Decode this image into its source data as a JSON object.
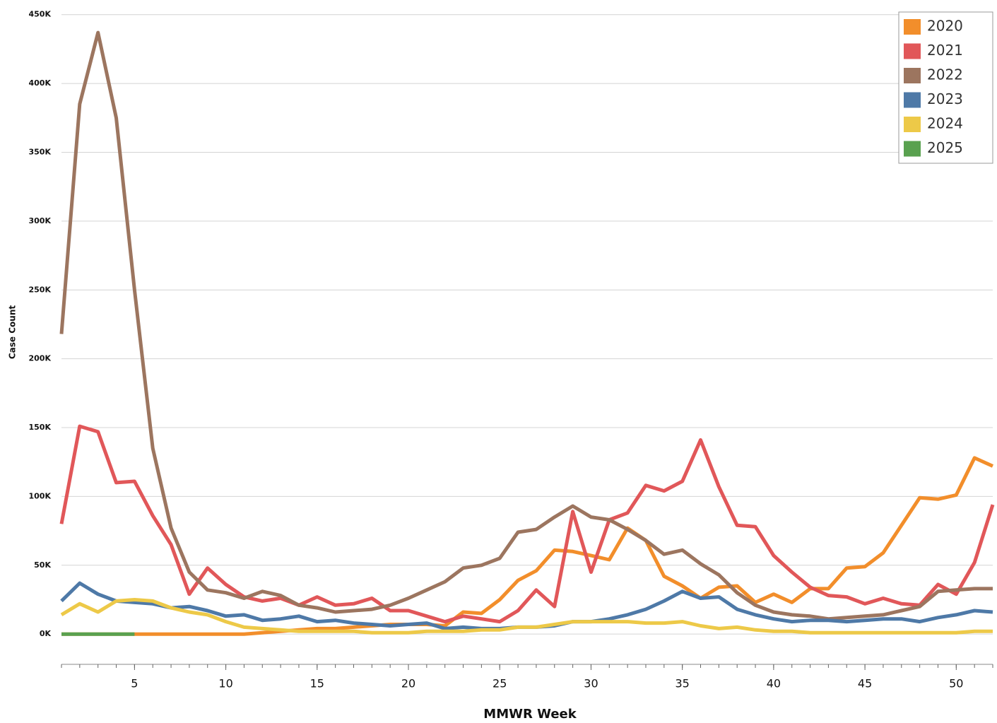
{
  "chart_data": {
    "type": "line",
    "x_label": "MMWR Week",
    "y_label": "Case Count",
    "x": [
      1,
      2,
      3,
      4,
      5,
      6,
      7,
      8,
      9,
      10,
      11,
      12,
      13,
      14,
      15,
      16,
      17,
      18,
      19,
      20,
      21,
      22,
      23,
      24,
      25,
      26,
      27,
      28,
      29,
      30,
      31,
      32,
      33,
      34,
      35,
      36,
      37,
      38,
      39,
      40,
      41,
      42,
      43,
      44,
      45,
      46,
      47,
      48,
      49,
      50,
      51,
      52
    ],
    "xlim": [
      1,
      52
    ],
    "xticks": [
      5,
      10,
      15,
      20,
      25,
      30,
      35,
      40,
      45,
      50
    ],
    "ylim": [
      -22000,
      455000
    ],
    "yticks": [
      {
        "value": 0,
        "label": "0K"
      },
      {
        "value": 50000,
        "label": "50K"
      },
      {
        "value": 100000,
        "label": "100K"
      },
      {
        "value": 150000,
        "label": "150K"
      },
      {
        "value": 200000,
        "label": "200K"
      },
      {
        "value": 250000,
        "label": "250K"
      },
      {
        "value": 300000,
        "label": "300K"
      },
      {
        "value": 350000,
        "label": "350K"
      },
      {
        "value": 400000,
        "label": "400K"
      },
      {
        "value": 450000,
        "label": "450K"
      }
    ],
    "grid": true,
    "legend": "top-right",
    "series": [
      {
        "name": "2020",
        "color": "#f28e2b",
        "values": [
          0,
          0,
          0,
          0,
          0,
          0,
          0,
          0,
          0,
          0,
          0,
          1000,
          2000,
          3000,
          4000,
          4000,
          5000,
          6000,
          7000,
          7000,
          7000,
          6000,
          16000,
          15000,
          25000,
          39000,
          46000,
          61000,
          60000,
          57000,
          54000,
          77000,
          68000,
          42000,
          35000,
          26000,
          34000,
          35000,
          23000,
          29000,
          23000,
          33000,
          33000,
          48000,
          49000,
          59000,
          79000,
          99000,
          98000,
          101000,
          128000,
          122000
        ]
      },
      {
        "name": "2021",
        "color": "#e15759",
        "values": [
          80000,
          151000,
          147000,
          110000,
          111000,
          86000,
          65000,
          29000,
          48000,
          36000,
          27000,
          24000,
          26000,
          21000,
          27000,
          21000,
          22000,
          26000,
          17000,
          17000,
          13000,
          9000,
          13000,
          11000,
          9000,
          17000,
          32000,
          20000,
          89000,
          45000,
          83000,
          88000,
          108000,
          104000,
          111000,
          141000,
          107000,
          79000,
          78000,
          57000,
          45000,
          34000,
          28000,
          27000,
          22000,
          26000,
          22000,
          21000,
          36000,
          29000,
          52000,
          94000
        ]
      },
      {
        "name": "2022",
        "color": "#9c755f",
        "values": [
          218000,
          385000,
          437000,
          375000,
          250000,
          135000,
          77000,
          45000,
          32000,
          30000,
          26000,
          31000,
          28000,
          21000,
          19000,
          16000,
          17000,
          18000,
          21000,
          26000,
          32000,
          38000,
          48000,
          50000,
          55000,
          74000,
          76000,
          85000,
          93000,
          85000,
          83000,
          76000,
          68000,
          58000,
          61000,
          51000,
          43000,
          30000,
          21000,
          16000,
          14000,
          13000,
          11000,
          12000,
          13000,
          14000,
          17000,
          20000,
          31000,
          32000,
          33000,
          33000
        ]
      },
      {
        "name": "2023",
        "color": "#4e79a7",
        "values": [
          24000,
          37000,
          29000,
          24000,
          23000,
          22000,
          19000,
          20000,
          17000,
          13000,
          14000,
          10000,
          11000,
          13000,
          9000,
          10000,
          8000,
          7000,
          6000,
          7000,
          8000,
          4000,
          5000,
          4000,
          4000,
          5000,
          5000,
          6000,
          9000,
          9000,
          11000,
          14000,
          18000,
          24000,
          31000,
          26000,
          27000,
          18000,
          14000,
          11000,
          9000,
          10000,
          10000,
          9000,
          10000,
          11000,
          11000,
          9000,
          12000,
          14000,
          17000,
          16000
        ]
      },
      {
        "name": "2024",
        "color": "#edc948",
        "values": [
          14000,
          22000,
          16000,
          24000,
          25000,
          24000,
          19000,
          16000,
          14000,
          9000,
          5000,
          4000,
          3000,
          2000,
          2000,
          2000,
          2000,
          1000,
          1000,
          1000,
          2000,
          2000,
          2000,
          3000,
          3000,
          5000,
          5000,
          7000,
          9000,
          9000,
          9000,
          9000,
          8000,
          8000,
          9000,
          6000,
          4000,
          5000,
          3000,
          2000,
          2000,
          1000,
          1000,
          1000,
          1000,
          1000,
          1000,
          1000,
          1000,
          1000,
          2000,
          2000
        ]
      },
      {
        "name": "2025",
        "color": "#59a14f",
        "values": [
          0,
          0,
          0,
          0,
          0,
          null,
          null,
          null,
          null,
          null,
          null,
          null,
          null,
          null,
          null,
          null,
          null,
          null,
          null,
          null,
          null,
          null,
          null,
          null,
          null,
          null,
          null,
          null,
          null,
          null,
          null,
          null,
          null,
          null,
          null,
          null,
          null,
          null,
          null,
          null,
          null,
          null,
          null,
          null,
          null,
          null,
          null,
          null,
          null,
          null,
          null,
          null
        ]
      }
    ]
  }
}
